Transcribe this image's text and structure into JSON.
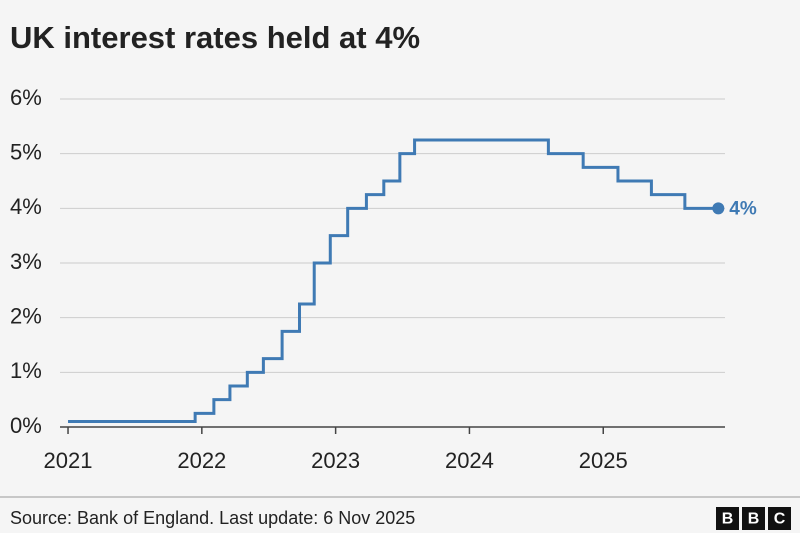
{
  "chart_data": {
    "type": "line",
    "step": true,
    "title": "UK interest rates held at 4%",
    "source": "Source: Bank of England. Last update: 6 Nov 2025",
    "logo": [
      "B",
      "B",
      "C"
    ],
    "grid": true,
    "xlim": [
      2020.94,
      2025.91
    ],
    "xticks": [
      2021,
      2022,
      2023,
      2024,
      2025
    ],
    "ylim": [
      0,
      6
    ],
    "yticks": [
      {
        "value": 0,
        "label": "0%"
      },
      {
        "value": 1,
        "label": "1%"
      },
      {
        "value": 2,
        "label": "2%"
      },
      {
        "value": 3,
        "label": "3%"
      },
      {
        "value": 4,
        "label": "4%"
      },
      {
        "value": 5,
        "label": "5%"
      },
      {
        "value": 6,
        "label": "6%"
      }
    ],
    "series": [
      {
        "color": "#3f7ab4",
        "x": [
          2021.0,
          2021.95,
          2022.09,
          2022.21,
          2022.34,
          2022.46,
          2022.6,
          2022.73,
          2022.84,
          2022.96,
          2023.09,
          2023.23,
          2023.36,
          2023.48,
          2023.59,
          2024.59,
          2024.85,
          2025.11,
          2025.36,
          2025.61,
          2025.86
        ],
        "values": [
          0.1,
          0.25,
          0.5,
          0.75,
          1,
          1.25,
          1.75,
          2.25,
          3,
          3.5,
          4,
          4.25,
          4.5,
          5,
          5.25,
          5,
          4.75,
          4.5,
          4.25,
          4,
          4
        ],
        "value_labels": [
          null,
          null,
          null,
          null,
          null,
          null,
          null,
          null,
          null,
          null,
          null,
          null,
          null,
          null,
          null,
          null,
          null,
          null,
          null,
          null,
          "4%"
        ]
      }
    ]
  }
}
